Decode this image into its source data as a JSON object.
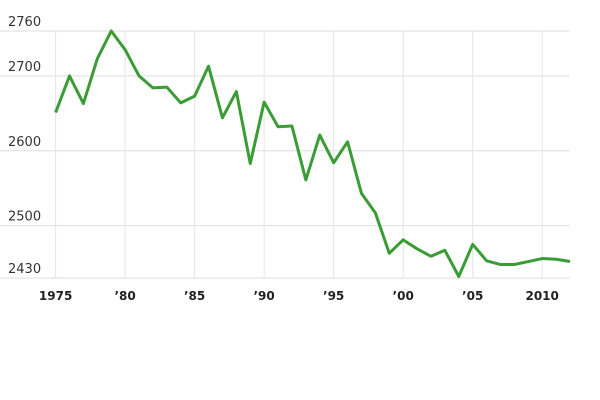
{
  "chart_data": {
    "type": "line",
    "x": [
      1975,
      1976,
      1977,
      1978,
      1979,
      1980,
      1981,
      1982,
      1983,
      1984,
      1985,
      1986,
      1987,
      1988,
      1989,
      1990,
      1991,
      1992,
      1993,
      1994,
      1995,
      1996,
      1997,
      1998,
      1999,
      2000,
      2001,
      2002,
      2003,
      2004,
      2005,
      2006,
      2007,
      2008,
      2009,
      2010,
      2011,
      2012
    ],
    "values": [
      2651,
      2700,
      2663,
      2723,
      2760,
      2735,
      2700,
      2684,
      2685,
      2664,
      2673,
      2713,
      2644,
      2679,
      2583,
      2665,
      2632,
      2633,
      2561,
      2621,
      2584,
      2612,
      2543,
      2517,
      2463,
      2481,
      2469,
      2459,
      2467,
      2432,
      2475,
      2453,
      2448,
      2448,
      2452,
      2456,
      2455,
      2452
    ],
    "color": "#3a9c35",
    "xlim": [
      1971,
      2012
    ],
    "ylim": [
      2430,
      2760
    ],
    "xticks": [
      1975,
      {
        "value": 1980,
        "label": "’80"
      },
      {
        "value": 1985,
        "label": "’85"
      },
      {
        "value": 1990,
        "label": "’90"
      },
      {
        "value": 1995,
        "label": "’95"
      },
      {
        "value": 2000,
        "label": "’00"
      },
      {
        "value": 2005,
        "label": "’05"
      },
      2010
    ],
    "yticks": [
      2430,
      2500,
      2600,
      2700,
      2760
    ],
    "grid": true
  }
}
